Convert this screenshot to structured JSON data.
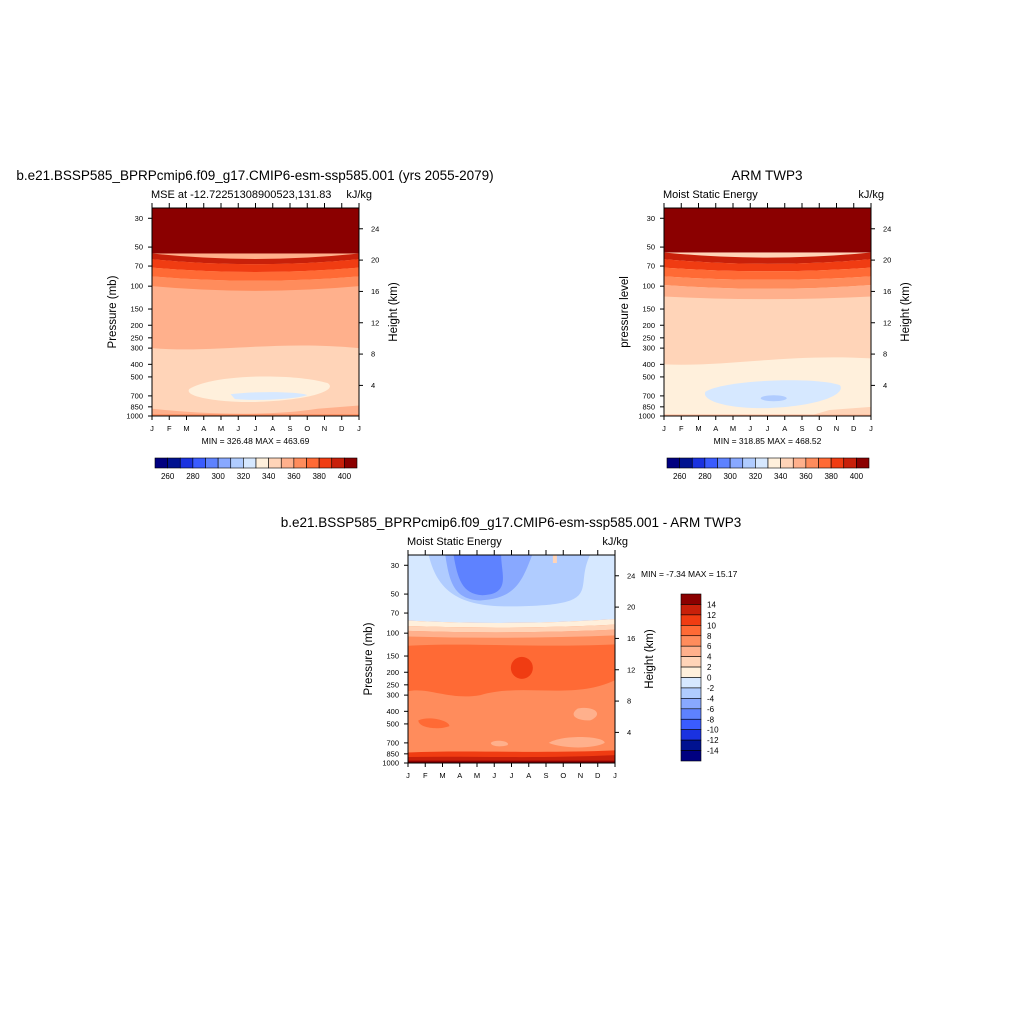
{
  "palette": {
    "warm": [
      "#fff0dc",
      "#ffd4b8",
      "#ffb08c",
      "#ff8c5c",
      "#ff6a35",
      "#f03c12",
      "#c8200a",
      "#8b0000"
    ],
    "cool": [
      "#d6e8ff",
      "#b0ccff",
      "#88a8ff",
      "#5e82ff",
      "#3a5cff",
      "#1a32e0",
      "#001290",
      "#000080"
    ]
  },
  "months": [
    "J",
    "F",
    "M",
    "A",
    "M",
    "J",
    "J",
    "A",
    "S",
    "O",
    "N",
    "D",
    "J"
  ],
  "chart_data": [
    {
      "type": "heatmap",
      "title": "b.e21.BSSP585_BPRPcmip6.f09_g17.CMIP6-esm-ssp585.001 (yrs 2055-2079)",
      "subtitle_left": "MSE at -12.72251308900523,131.83",
      "subtitle_right": "kJ/kg",
      "ylabel": "Pressure (mb)",
      "ylabel_right": "Height (km)",
      "stats": "MIN = 326.48 MAX = 463.69",
      "x_ticks": [
        "J",
        "F",
        "M",
        "A",
        "M",
        "J",
        "J",
        "A",
        "S",
        "O",
        "N",
        "D",
        "J"
      ],
      "pressure_ticks": [
        30,
        50,
        70,
        100,
        150,
        200,
        250,
        300,
        400,
        500,
        700,
        850,
        1000
      ],
      "height_ticks": [
        4,
        8,
        12,
        16,
        20,
        24
      ],
      "ylim": [
        1000,
        30
      ],
      "colorbar": {
        "orientation": "horizontal",
        "levels": [
          250,
          260,
          270,
          280,
          290,
          300,
          310,
          320,
          330,
          340,
          350,
          360,
          370,
          380,
          390,
          400,
          410
        ],
        "labels": [
          "260",
          "280",
          "300",
          "320",
          "340",
          "360",
          "380",
          "400"
        ]
      }
    },
    {
      "type": "heatmap",
      "title": "ARM TWP3",
      "subtitle_left": "Moist Static Energy",
      "subtitle_right": "kJ/kg",
      "ylabel": "pressure level",
      "ylabel_right": "Height (km)",
      "stats": "MIN = 318.85 MAX = 468.52",
      "x_ticks": [
        "J",
        "F",
        "M",
        "A",
        "M",
        "J",
        "J",
        "A",
        "S",
        "O",
        "N",
        "D",
        "J"
      ],
      "pressure_ticks": [
        30,
        50,
        70,
        100,
        150,
        200,
        250,
        300,
        400,
        500,
        700,
        850,
        1000
      ],
      "height_ticks": [
        4,
        8,
        12,
        16,
        20,
        24
      ],
      "ylim": [
        1000,
        30
      ],
      "colorbar": {
        "orientation": "horizontal",
        "levels": [
          250,
          260,
          270,
          280,
          290,
          300,
          310,
          320,
          330,
          340,
          350,
          360,
          370,
          380,
          390,
          400,
          410
        ],
        "labels": [
          "260",
          "280",
          "300",
          "320",
          "340",
          "360",
          "380",
          "400"
        ]
      }
    },
    {
      "type": "heatmap",
      "title": "b.e21.BSSP585_BPRPcmip6.f09_g17.CMIP6-esm-ssp585.001 - ARM TWP3",
      "subtitle_left": "Moist Static Energy",
      "subtitle_right": "kJ/kg",
      "ylabel": "Pressure (mb)",
      "ylabel_right": "Height (km)",
      "stats": "MIN =  -7.34 MAX =  15.17",
      "x_ticks": [
        "J",
        "F",
        "M",
        "A",
        "M",
        "J",
        "J",
        "A",
        "S",
        "O",
        "N",
        "D",
        "J"
      ],
      "pressure_ticks": [
        30,
        50,
        70,
        100,
        150,
        200,
        250,
        300,
        400,
        500,
        700,
        850,
        1000
      ],
      "height_ticks": [
        4,
        8,
        12,
        16,
        20,
        24
      ],
      "ylim": [
        1000,
        30
      ],
      "colorbar": {
        "orientation": "vertical",
        "labels": [
          "14",
          "12",
          "10",
          "8",
          "6",
          "4",
          "2",
          "0",
          "-2",
          "-4",
          "-6",
          "-8",
          "-10",
          "-12",
          "-14"
        ]
      }
    }
  ]
}
